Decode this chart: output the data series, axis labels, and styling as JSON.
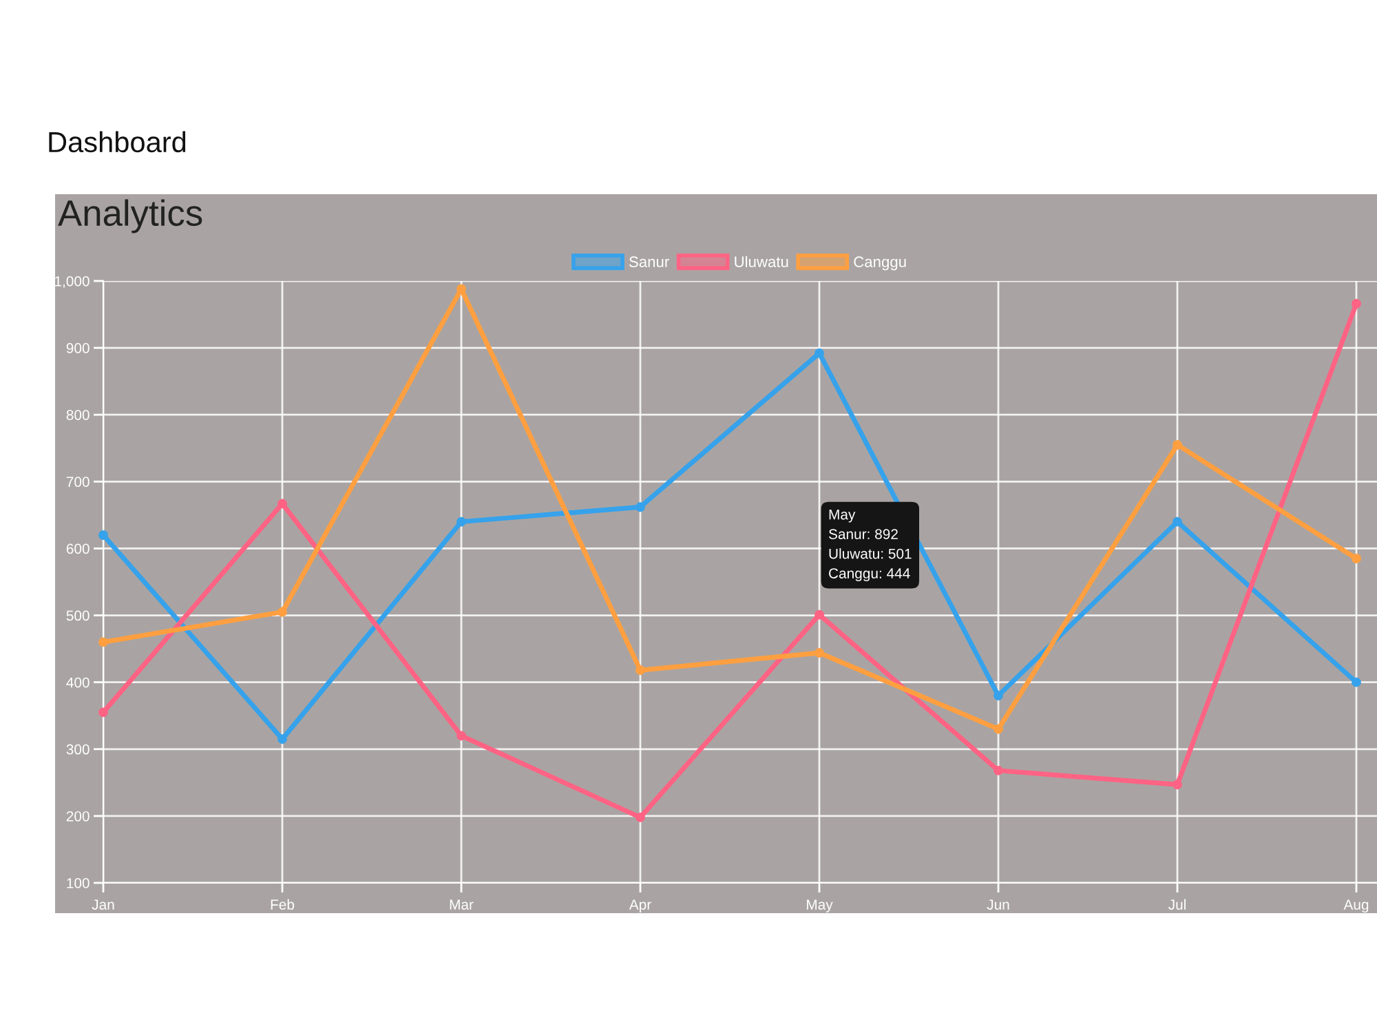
{
  "chart_data": {
    "type": "line",
    "title": "Dashboard",
    "subtitle": "Analytics",
    "categories": [
      "Jan",
      "Feb",
      "Mar",
      "Apr",
      "May",
      "Jun",
      "Jul",
      "Aug"
    ],
    "series": [
      {
        "name": "Sanur",
        "color": "#36a2eb",
        "values": [
          620,
          315,
          640,
          662,
          892,
          380,
          640,
          400
        ]
      },
      {
        "name": "Uluwatu",
        "color": "#ff6384",
        "values": [
          355,
          667,
          320,
          198,
          501,
          268,
          247,
          966
        ]
      },
      {
        "name": "Canggu",
        "color": "#ff9f40",
        "values": [
          460,
          505,
          988,
          418,
          444,
          330,
          755,
          585
        ]
      }
    ],
    "ylim": [
      100,
      1000
    ],
    "yticks": [
      100,
      200,
      300,
      400,
      500,
      600,
      700,
      800,
      900,
      {
        "value": 1000,
        "label": "1,000"
      }
    ],
    "grid": true,
    "legend": "top",
    "marker": "circle",
    "line_style": "solid",
    "annotations": [
      "May\nSanur: 892\nUluwatu: 501\nCanggu: 444"
    ]
  }
}
